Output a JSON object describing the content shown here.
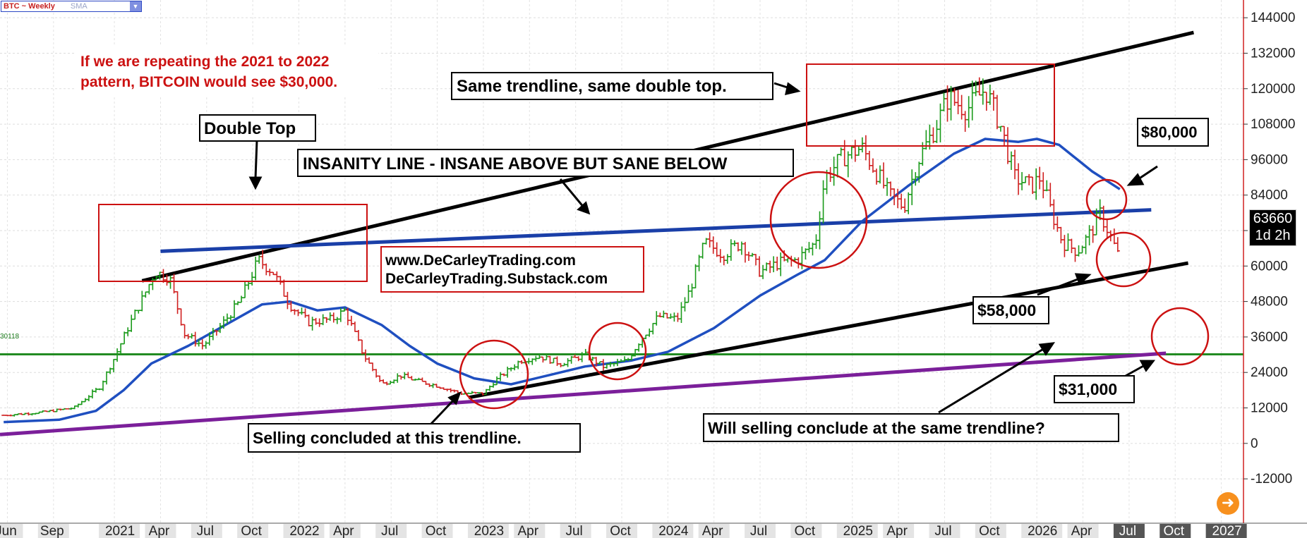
{
  "window": {
    "symbol": "BTC ~ Weekly",
    "indicator": "SMA",
    "hline_label": "30118",
    "last_price": "63660",
    "countdown": "1d 2h"
  },
  "colors": {
    "up_bar": "#1a9a1a",
    "down_bar": "#d02020",
    "sma": "#1f4fc0",
    "trend_black": "#000000",
    "insanity": "#1a3fa8",
    "purple": "#7b1f9a",
    "hline": "#228b22",
    "annotation": "#cc1111"
  },
  "annotations": {
    "repeat_note_1": "If we are repeating the 2021 to 2022",
    "repeat_note_2": "pattern, BITCOIN would see $30,000.",
    "same_trendline": "Same trendline, same double top.",
    "double_top": "Double Top",
    "insanity_line": "INSANITY LINE - INSANE ABOVE BUT SANE BELOW",
    "website": "www.DeCarleyTrading.com",
    "substack": "DeCarleyTrading.Substack.com",
    "price_80k": "$80,000",
    "price_58k": "$58,000",
    "price_31k": "$31,000",
    "selling_concluded": "Selling concluded at this trendline.",
    "will_selling": "Will selling conclude at the same trendline?"
  },
  "chart_data": {
    "type": "ohlc",
    "title": "BTC ~ Weekly",
    "y_ticks": [
      -12000,
      0,
      12000,
      24000,
      36000,
      48000,
      60000,
      72000,
      84000,
      96000,
      108000,
      120000,
      132000,
      144000
    ],
    "y_tick_labels": [
      "-12000",
      "0",
      "12000",
      "24000",
      "36000",
      "48000",
      "60000",
      "72000",
      "84000",
      "96000",
      "108000",
      "120000",
      "132000",
      "144000"
    ],
    "ylim": [
      -27000,
      150000
    ],
    "x_labels": [
      "Jun",
      "Sep",
      "2021",
      "Apr",
      "Jul",
      "Oct",
      "2022",
      "Apr",
      "Jul",
      "Oct",
      "2023",
      "Apr",
      "Jul",
      "Oct",
      "2024",
      "Apr",
      "Jul",
      "Oct",
      "2025",
      "Apr",
      "Jul",
      "Oct",
      "2026",
      "Apr",
      "Jul",
      "Oct",
      "2027"
    ],
    "x_label_dates": [
      2020.42,
      2020.67,
      2021.0,
      2021.25,
      2021.5,
      2021.75,
      2022.0,
      2022.25,
      2022.5,
      2022.75,
      2023.0,
      2023.25,
      2023.5,
      2023.75,
      2024.0,
      2024.25,
      2024.5,
      2024.75,
      2025.0,
      2025.25,
      2025.5,
      2025.75,
      2026.0,
      2026.25,
      2026.5,
      2026.75,
      2027.0
    ],
    "xlim": [
      2020.38,
      2027.12
    ],
    "grid": true,
    "horizontal_line": 30118,
    "price_anchors": [
      [
        2020.4,
        9500
      ],
      [
        2020.6,
        10500
      ],
      [
        2020.78,
        12000
      ],
      [
        2020.92,
        19000
      ],
      [
        2021.0,
        29000
      ],
      [
        2021.08,
        40000
      ],
      [
        2021.16,
        50000
      ],
      [
        2021.22,
        58000
      ],
      [
        2021.3,
        56000
      ],
      [
        2021.38,
        37000
      ],
      [
        2021.48,
        33000
      ],
      [
        2021.58,
        40000
      ],
      [
        2021.68,
        48000
      ],
      [
        2021.78,
        62000
      ],
      [
        2021.86,
        58000
      ],
      [
        2021.95,
        47000
      ],
      [
        2022.05,
        41000
      ],
      [
        2022.18,
        42000
      ],
      [
        2022.25,
        45000
      ],
      [
        2022.35,
        30000
      ],
      [
        2022.45,
        20000
      ],
      [
        2022.55,
        23000
      ],
      [
        2022.65,
        21000
      ],
      [
        2022.75,
        19500
      ],
      [
        2022.87,
        17000
      ],
      [
        2023.0,
        16800
      ],
      [
        2023.06,
        21000
      ],
      [
        2023.2,
        28000
      ],
      [
        2023.3,
        29500
      ],
      [
        2023.42,
        27000
      ],
      [
        2023.55,
        30000
      ],
      [
        2023.65,
        26000
      ],
      [
        2023.78,
        28000
      ],
      [
        2023.85,
        35000
      ],
      [
        2023.95,
        43000
      ],
      [
        2024.05,
        42000
      ],
      [
        2024.12,
        52000
      ],
      [
        2024.2,
        68000
      ],
      [
        2024.3,
        64000
      ],
      [
        2024.4,
        68000
      ],
      [
        2024.5,
        58000
      ],
      [
        2024.6,
        61000
      ],
      [
        2024.7,
        62000
      ],
      [
        2024.8,
        68000
      ],
      [
        2024.85,
        90000
      ],
      [
        2024.95,
        97000
      ],
      [
        2025.05,
        100000
      ],
      [
        2025.1,
        95000
      ],
      [
        2025.2,
        84000
      ],
      [
        2025.28,
        80000
      ],
      [
        2025.35,
        95000
      ],
      [
        2025.45,
        107000
      ],
      [
        2025.52,
        117000
      ],
      [
        2025.62,
        113000
      ],
      [
        2025.72,
        120000
      ],
      [
        2025.8,
        108000
      ],
      [
        2025.88,
        90000
      ],
      [
        2025.97,
        87000
      ],
      [
        2026.02,
        90000
      ],
      [
        2026.08,
        78000
      ],
      [
        2026.14,
        68000
      ],
      [
        2026.22,
        65000
      ],
      [
        2026.3,
        72000
      ],
      [
        2026.34,
        78000
      ],
      [
        2026.4,
        70000
      ],
      [
        2026.44,
        63660
      ]
    ],
    "sma_points": [
      [
        2020.4,
        7200
      ],
      [
        2020.7,
        8000
      ],
      [
        2020.9,
        11000
      ],
      [
        2021.05,
        18000
      ],
      [
        2021.2,
        27000
      ],
      [
        2021.4,
        33000
      ],
      [
        2021.6,
        40000
      ],
      [
        2021.8,
        47000
      ],
      [
        2021.95,
        48000
      ],
      [
        2022.1,
        45000
      ],
      [
        2022.25,
        46000
      ],
      [
        2022.45,
        40000
      ],
      [
        2022.6,
        33000
      ],
      [
        2022.75,
        27000
      ],
      [
        2022.95,
        22000
      ],
      [
        2023.15,
        20000
      ],
      [
        2023.35,
        23000
      ],
      [
        2023.55,
        26000
      ],
      [
        2023.8,
        28000
      ],
      [
        2024.0,
        31000
      ],
      [
        2024.25,
        39000
      ],
      [
        2024.5,
        50000
      ],
      [
        2024.7,
        57000
      ],
      [
        2024.85,
        62000
      ],
      [
        2025.05,
        75000
      ],
      [
        2025.3,
        87000
      ],
      [
        2025.55,
        98000
      ],
      [
        2025.72,
        103000
      ],
      [
        2025.9,
        102000
      ],
      [
        2026.0,
        103000
      ],
      [
        2026.12,
        101000
      ],
      [
        2026.3,
        92000
      ],
      [
        2026.45,
        86000
      ]
    ],
    "lines": [
      {
        "name": "upper_trendline",
        "from": [
          2021.15,
          55000
        ],
        "to": [
          2026.85,
          139000
        ]
      },
      {
        "name": "insanity_line",
        "from": [
          2021.25,
          65000
        ],
        "to": [
          2026.62,
          79000
        ]
      },
      {
        "name": "middle_trendline",
        "from": [
          2022.92,
          15500
        ],
        "to": [
          2026.82,
          61000
        ]
      },
      {
        "name": "lower_trendline",
        "from": [
          2020.38,
          3000
        ],
        "to": [
          2026.7,
          30500
        ]
      }
    ]
  }
}
